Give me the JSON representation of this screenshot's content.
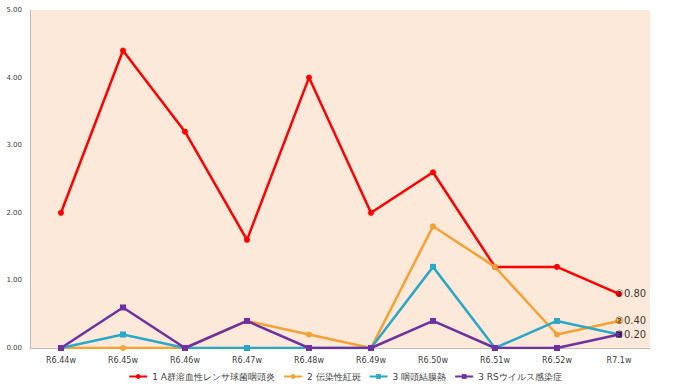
{
  "chart_data": {
    "type": "line",
    "categories": [
      "R6.44w",
      "R6.45w",
      "R6.46w",
      "R6.47w",
      "R6.48w",
      "R6.49w",
      "R6.50w",
      "R6.51w",
      "R6.52w",
      "R7.1w"
    ],
    "series": [
      {
        "name": "1 A群溶血性レンサ球菌咽頭炎",
        "color": "#ff0000",
        "marker": "circle",
        "values": [
          2.0,
          4.4,
          3.2,
          1.6,
          4.0,
          2.0,
          2.6,
          1.2,
          1.2,
          0.8
        ]
      },
      {
        "name": "2 伝染性紅斑",
        "color": "#f7a033",
        "marker": "circle",
        "values": [
          0,
          0,
          0,
          0.4,
          0.2,
          0,
          1.8,
          1.2,
          0.2,
          0.4
        ]
      },
      {
        "name": "3 咽頭結膜熱",
        "color": "#2aa8c8",
        "marker": "square",
        "values": [
          0,
          0.2,
          0,
          0,
          0,
          0,
          1.2,
          0,
          0.4,
          0.2
        ]
      },
      {
        "name": "3 RSウイルス感染症",
        "color": "#7030a0",
        "marker": "square",
        "values": [
          0,
          0.6,
          0,
          0.4,
          0,
          0,
          0.4,
          0,
          0,
          0.2
        ]
      }
    ],
    "annotations": [
      {
        "text": "①0.80",
        "x": "R7.1w",
        "y": 0.8
      },
      {
        "text": "②0.40",
        "x": "R7.1w",
        "y": 0.4
      },
      {
        "text": "③0.20",
        "x": "R7.1w",
        "y": 0.2
      }
    ],
    "ylim": [
      0,
      5
    ],
    "yticks": [
      {
        "value": 0,
        "label": "0.00"
      },
      {
        "value": 1,
        "label": "1.00"
      },
      {
        "value": 2,
        "label": "2.00"
      },
      {
        "value": 3,
        "label": "3.00"
      },
      {
        "value": 4,
        "label": "4.00"
      },
      {
        "value": 5,
        "label": "5.00"
      }
    ],
    "grid": false,
    "legend": "bottom"
  }
}
